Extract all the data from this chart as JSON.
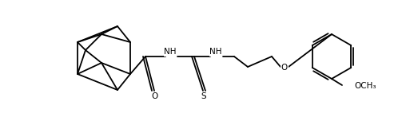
{
  "figsize": [
    5.03,
    1.42
  ],
  "dpi": 100,
  "bg_color": "#ffffff",
  "line_color": "#000000",
  "line_width": 1.3,
  "font_size": 7.5,
  "font_family": "Arial",
  "xlim": [
    0,
    503
  ],
  "ylim": [
    0,
    142
  ],
  "labels": {
    "O_carbonyl": [
      196,
      18,
      "O"
    ],
    "S_thio": [
      283,
      18,
      "S"
    ],
    "NH1": [
      224,
      80,
      "NH"
    ],
    "NH2": [
      312,
      80,
      "NH"
    ],
    "O_ether": [
      370,
      68,
      "O"
    ],
    "O_methoxy": [
      452,
      123,
      "O"
    ],
    "CH3_methoxy": [
      476,
      123,
      "OCH₃"
    ]
  }
}
